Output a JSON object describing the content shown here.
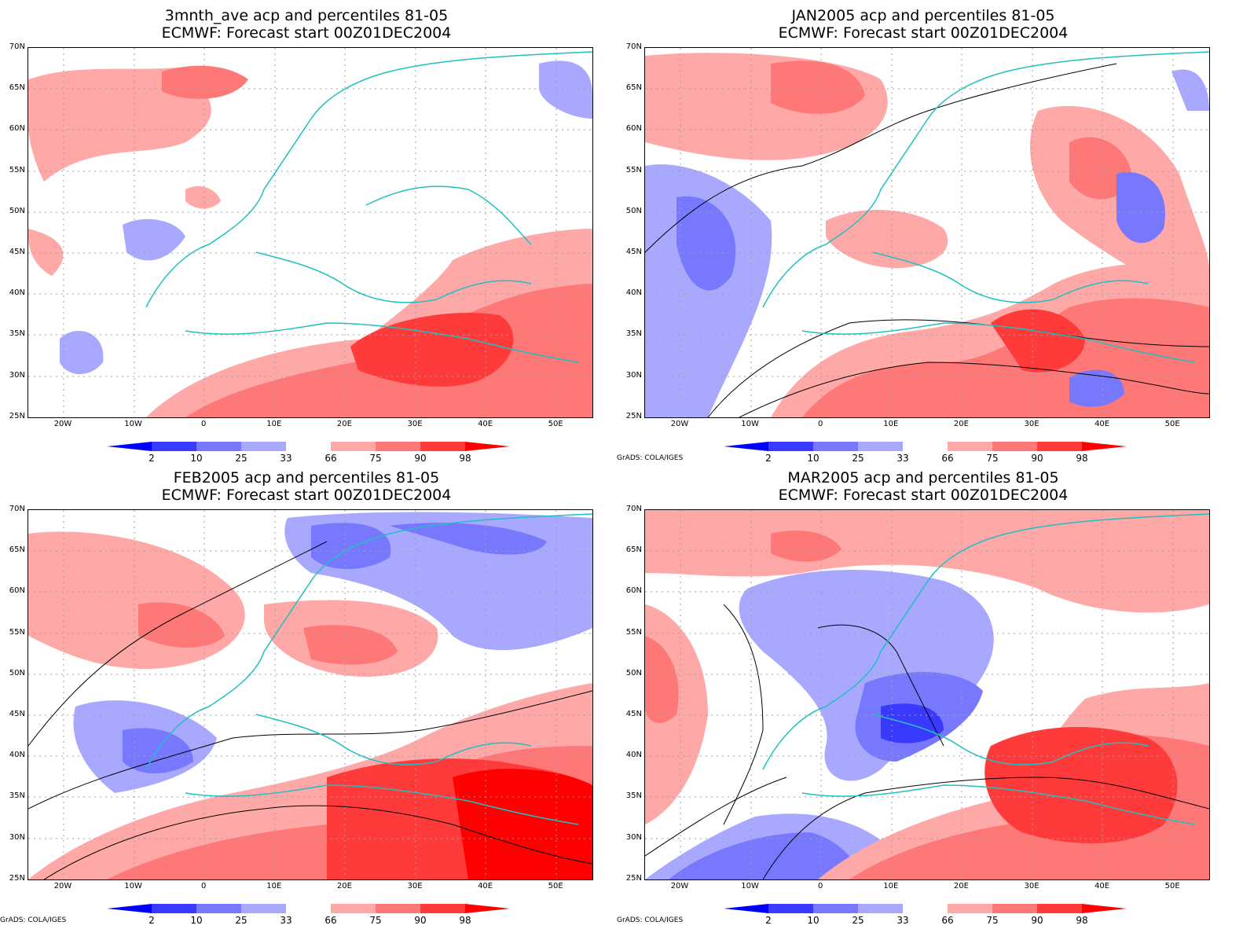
{
  "panels": [
    {
      "id": "p1",
      "title1": "3mnth_ave acp and percentiles 81-05",
      "title2": "ECMWF: Forecast start 00Z01DEC2004",
      "credit": ""
    },
    {
      "id": "p2",
      "title1": "JAN2005 acp and percentiles 81-05",
      "title2": "ECMWF: Forecast start 00Z01DEC2004",
      "credit": "GrADS: COLA/IGES"
    },
    {
      "id": "p3",
      "title1": "FEB2005 acp and percentiles 81-05",
      "title2": "ECMWF: Forecast start 00Z01DEC2004",
      "credit": "GrADS: COLA/IGES"
    },
    {
      "id": "p4",
      "title1": "MAR2005 acp and percentiles 81-05",
      "title2": "ECMWF: Forecast start 00Z01DEC2004",
      "credit": "GrADS: COLA/IGES"
    }
  ],
  "lat_labels": [
    "70N",
    "65N",
    "60N",
    "55N",
    "50N",
    "45N",
    "40N",
    "35N",
    "30N",
    "25N"
  ],
  "lon_labels": [
    "20W",
    "10W",
    "0",
    "10E",
    "20E",
    "30E",
    "40E",
    "50E"
  ],
  "colorbar": {
    "labels": [
      "2",
      "10",
      "25",
      "33",
      "66",
      "75",
      "90",
      "98"
    ],
    "colors": [
      "#0000ff",
      "#3a3aff",
      "#7878ff",
      "#a8a8ff",
      "#ffffff",
      "#ffa8a8",
      "#ff7878",
      "#ff3a3a",
      "#ff0000"
    ]
  }
}
